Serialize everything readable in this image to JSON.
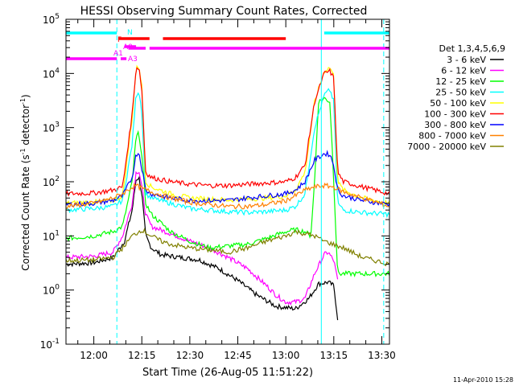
{
  "chart_data": {
    "type": "line",
    "title": "HESSI Observing Summary Count Rates, Corrected",
    "xlabel": "Start Time (26-Aug-05 11:51:22)",
    "ylabel": "Corrected Count Rate (s",
    "ylabel_sup1": "-1",
    "ylabel_mid": " detector",
    "ylabel_sup2": "-1",
    "ylabel_end": ")",
    "footer": "11-Apr-2010 15:28",
    "yscale": "log",
    "xlim": [
      11.855,
      13.54
    ],
    "ylim_exp": [
      -1,
      5
    ],
    "x_ticks": [
      {
        "x": 12.0,
        "label": "12:00"
      },
      {
        "x": 12.25,
        "label": "12:15"
      },
      {
        "x": 12.5,
        "label": "12:30"
      },
      {
        "x": 12.75,
        "label": "12:45"
      },
      {
        "x": 13.0,
        "label": "13:00"
      },
      {
        "x": 13.25,
        "label": "13:15"
      },
      {
        "x": 13.5,
        "label": "13:30"
      }
    ],
    "y_ticks": [
      {
        "exp": -1,
        "label": "10",
        "sup": "-1"
      },
      {
        "exp": 0,
        "label": "10",
        "sup": "0"
      },
      {
        "exp": 1,
        "label": "10",
        "sup": "1"
      },
      {
        "exp": 2,
        "label": "10",
        "sup": "2"
      },
      {
        "exp": 3,
        "label": "10",
        "sup": "3"
      },
      {
        "exp": 4,
        "label": "10",
        "sup": "4"
      },
      {
        "exp": 5,
        "label": "10",
        "sup": "5"
      }
    ],
    "legend_title": "Det 1,3,4,5,6,9",
    "legend_placement": "right",
    "series": [
      {
        "name": "3 - 6 keV",
        "color": "#000000",
        "points": [
          [
            11.855,
            3
          ],
          [
            12.0,
            3.2
          ],
          [
            12.1,
            4
          ],
          [
            12.16,
            8
          ],
          [
            12.2,
            30
          ],
          [
            12.22,
            110
          ],
          [
            12.235,
            120
          ],
          [
            12.25,
            60
          ],
          [
            12.27,
            10
          ],
          [
            12.3,
            6
          ],
          [
            12.35,
            4.5
          ],
          [
            12.45,
            4
          ],
          [
            12.55,
            3.6
          ],
          [
            12.65,
            2.5
          ],
          [
            12.75,
            1.5
          ],
          [
            12.85,
            0.8
          ],
          [
            12.95,
            0.5
          ],
          [
            13.05,
            0.45
          ],
          [
            13.12,
            0.7
          ],
          [
            13.17,
            1.3
          ],
          [
            13.22,
            1.4
          ],
          [
            13.25,
            1.2
          ],
          [
            13.27,
            0.3
          ]
        ]
      },
      {
        "name": "6 - 12 keV",
        "color": "#ff00ff",
        "points": [
          [
            11.855,
            4
          ],
          [
            12.0,
            4.2
          ],
          [
            12.1,
            5
          ],
          [
            12.15,
            10
          ],
          [
            12.2,
            40
          ],
          [
            12.22,
            150
          ],
          [
            12.235,
            160
          ],
          [
            12.25,
            80
          ],
          [
            12.27,
            25
          ],
          [
            12.3,
            15
          ],
          [
            12.4,
            11
          ],
          [
            12.5,
            8
          ],
          [
            12.6,
            6
          ],
          [
            12.7,
            4
          ],
          [
            12.8,
            2.5
          ],
          [
            12.9,
            1.2
          ],
          [
            12.95,
            0.8
          ],
          [
            13.0,
            0.6
          ],
          [
            13.05,
            0.6
          ],
          [
            13.1,
            0.7
          ],
          [
            13.15,
            2
          ],
          [
            13.2,
            4.5
          ],
          [
            13.22,
            5
          ],
          [
            13.25,
            3.5
          ],
          [
            13.27,
            1.5
          ]
        ]
      },
      {
        "name": "12 - 25 keV",
        "color": "#00ff00",
        "points": [
          [
            11.855,
            9
          ],
          [
            12.0,
            10
          ],
          [
            12.1,
            12
          ],
          [
            12.15,
            15
          ],
          [
            12.2,
            100
          ],
          [
            12.22,
            650
          ],
          [
            12.235,
            800
          ],
          [
            12.25,
            300
          ],
          [
            12.27,
            40
          ],
          [
            12.3,
            25
          ],
          [
            12.4,
            12
          ],
          [
            12.5,
            8
          ],
          [
            12.6,
            6
          ],
          [
            12.7,
            6.5
          ],
          [
            12.8,
            7
          ],
          [
            12.9,
            9
          ],
          [
            13.0,
            12
          ],
          [
            13.05,
            13
          ],
          [
            13.1,
            12
          ],
          [
            13.13,
            10
          ],
          [
            13.15,
            100
          ],
          [
            13.17,
            3000
          ],
          [
            13.2,
            3500
          ],
          [
            13.23,
            3000
          ],
          [
            13.25,
            100
          ],
          [
            13.27,
            2
          ],
          [
            13.54,
            2
          ]
        ]
      },
      {
        "name": "25 - 50 keV",
        "color": "#00ffff",
        "points": [
          [
            11.855,
            30
          ],
          [
            12.0,
            32
          ],
          [
            12.1,
            35
          ],
          [
            12.15,
            45
          ],
          [
            12.2,
            500
          ],
          [
            12.22,
            4000
          ],
          [
            12.235,
            4800
          ],
          [
            12.25,
            2000
          ],
          [
            12.27,
            60
          ],
          [
            12.3,
            50
          ],
          [
            12.4,
            40
          ],
          [
            12.5,
            32
          ],
          [
            12.6,
            30
          ],
          [
            12.7,
            28
          ],
          [
            12.8,
            27
          ],
          [
            12.9,
            28
          ],
          [
            13.0,
            30
          ],
          [
            13.05,
            35
          ],
          [
            13.1,
            60
          ],
          [
            13.15,
            1000
          ],
          [
            13.2,
            4000
          ],
          [
            13.23,
            5000
          ],
          [
            13.25,
            3000
          ],
          [
            13.27,
            40
          ],
          [
            13.3,
            30
          ],
          [
            13.4,
            27
          ],
          [
            13.54,
            25
          ]
        ]
      },
      {
        "name": "50 - 100 keV",
        "color": "#ffff00",
        "points": [
          [
            11.855,
            40
          ],
          [
            12.0,
            42
          ],
          [
            12.1,
            45
          ],
          [
            12.15,
            55
          ],
          [
            12.2,
            1500
          ],
          [
            12.22,
            12000
          ],
          [
            12.235,
            14000
          ],
          [
            12.25,
            6000
          ],
          [
            12.27,
            100
          ],
          [
            12.3,
            80
          ],
          [
            12.4,
            60
          ],
          [
            12.5,
            50
          ],
          [
            12.6,
            48
          ],
          [
            12.7,
            46
          ],
          [
            12.8,
            48
          ],
          [
            12.9,
            50
          ],
          [
            13.0,
            55
          ],
          [
            13.05,
            70
          ],
          [
            13.1,
            150
          ],
          [
            13.15,
            3000
          ],
          [
            13.2,
            11000
          ],
          [
            13.23,
            13000
          ],
          [
            13.25,
            9000
          ],
          [
            13.27,
            100
          ],
          [
            13.3,
            70
          ],
          [
            13.4,
            50
          ],
          [
            13.54,
            40
          ]
        ]
      },
      {
        "name": "100 - 300 keV",
        "color": "#ff0000",
        "points": [
          [
            11.855,
            60
          ],
          [
            12.0,
            62
          ],
          [
            12.1,
            70
          ],
          [
            12.15,
            80
          ],
          [
            12.2,
            1800
          ],
          [
            12.22,
            12500
          ],
          [
            12.235,
            13000
          ],
          [
            12.25,
            5000
          ],
          [
            12.27,
            150
          ],
          [
            12.3,
            120
          ],
          [
            12.4,
            100
          ],
          [
            12.5,
            90
          ],
          [
            12.6,
            85
          ],
          [
            12.7,
            85
          ],
          [
            12.8,
            90
          ],
          [
            12.9,
            95
          ],
          [
            13.0,
            100
          ],
          [
            13.05,
            120
          ],
          [
            13.1,
            200
          ],
          [
            13.15,
            3000
          ],
          [
            13.2,
            10000
          ],
          [
            13.23,
            11000
          ],
          [
            13.25,
            8000
          ],
          [
            13.27,
            150
          ],
          [
            13.3,
            100
          ],
          [
            13.4,
            80
          ],
          [
            13.54,
            60
          ]
        ]
      },
      {
        "name": "300 - 800 keV",
        "color": "#0000ff",
        "points": [
          [
            11.855,
            38
          ],
          [
            12.0,
            40
          ],
          [
            12.1,
            45
          ],
          [
            12.15,
            55
          ],
          [
            12.2,
            120
          ],
          [
            12.22,
            320
          ],
          [
            12.235,
            350
          ],
          [
            12.25,
            180
          ],
          [
            12.27,
            70
          ],
          [
            12.3,
            60
          ],
          [
            12.4,
            50
          ],
          [
            12.5,
            45
          ],
          [
            12.6,
            45
          ],
          [
            12.7,
            45
          ],
          [
            12.8,
            50
          ],
          [
            12.9,
            55
          ],
          [
            13.0,
            60
          ],
          [
            13.05,
            70
          ],
          [
            13.1,
            100
          ],
          [
            13.15,
            250
          ],
          [
            13.2,
            330
          ],
          [
            13.23,
            320
          ],
          [
            13.25,
            200
          ],
          [
            13.27,
            70
          ],
          [
            13.3,
            55
          ],
          [
            13.4,
            45
          ],
          [
            13.54,
            38
          ]
        ]
      },
      {
        "name": "800 - 7000 keV",
        "color": "#ff8000",
        "points": [
          [
            11.855,
            35
          ],
          [
            12.0,
            40
          ],
          [
            12.1,
            50
          ],
          [
            12.15,
            60
          ],
          [
            12.2,
            80
          ],
          [
            12.22,
            85
          ],
          [
            12.235,
            80
          ],
          [
            12.25,
            75
          ],
          [
            12.3,
            65
          ],
          [
            12.4,
            50
          ],
          [
            12.5,
            42
          ],
          [
            12.6,
            38
          ],
          [
            12.7,
            35
          ],
          [
            12.8,
            35
          ],
          [
            12.9,
            38
          ],
          [
            13.0,
            45
          ],
          [
            13.05,
            55
          ],
          [
            13.1,
            70
          ],
          [
            13.15,
            80
          ],
          [
            13.2,
            85
          ],
          [
            13.25,
            80
          ],
          [
            13.3,
            65
          ],
          [
            13.4,
            50
          ],
          [
            13.54,
            35
          ]
        ]
      },
      {
        "name": "7000 - 20000 keV",
        "color": "#808000",
        "points": [
          [
            11.855,
            3.5
          ],
          [
            12.0,
            3.6
          ],
          [
            12.1,
            4
          ],
          [
            12.15,
            6
          ],
          [
            12.2,
            10
          ],
          [
            12.25,
            13
          ],
          [
            12.3,
            10
          ],
          [
            12.35,
            8
          ],
          [
            12.4,
            7
          ],
          [
            12.5,
            6
          ],
          [
            12.6,
            5.5
          ],
          [
            12.7,
            5
          ],
          [
            12.8,
            6
          ],
          [
            12.9,
            8
          ],
          [
            13.0,
            10
          ],
          [
            13.05,
            12
          ],
          [
            13.1,
            11
          ],
          [
            13.15,
            10
          ],
          [
            13.2,
            8
          ],
          [
            13.3,
            6
          ],
          [
            13.4,
            4
          ],
          [
            13.54,
            3
          ]
        ]
      }
    ],
    "attenuator_bars": [
      {
        "label": "N",
        "color": "#00ffff",
        "segments": [
          [
            11.855,
            12.12
          ],
          [
            13.2,
            13.54
          ]
        ]
      },
      {
        "label": "F",
        "color": "#ff0000",
        "segments": [
          [
            12.13,
            12.29
          ],
          [
            12.36,
            13.0
          ]
        ]
      },
      {
        "label": "A0",
        "color": "#ff00ff",
        "segments": [
          [
            12.16,
            12.22
          ]
        ]
      },
      {
        "label": "A1",
        "color": "#ff00ff",
        "segments": [
          [
            12.18,
            12.27
          ],
          [
            12.29,
            13.54
          ]
        ]
      },
      {
        "label": "A3",
        "color": "#ff00ff",
        "segments": [
          [
            11.855,
            12.12
          ],
          [
            12.14,
            12.17
          ]
        ]
      }
    ],
    "vertical_lines": [
      {
        "x": 12.12,
        "color": "#00ffff",
        "style": "dashed"
      },
      {
        "x": 13.185,
        "color": "#00ffff",
        "style": "solid"
      },
      {
        "x": 13.51,
        "color": "#00ffff",
        "style": "dashed"
      }
    ]
  }
}
